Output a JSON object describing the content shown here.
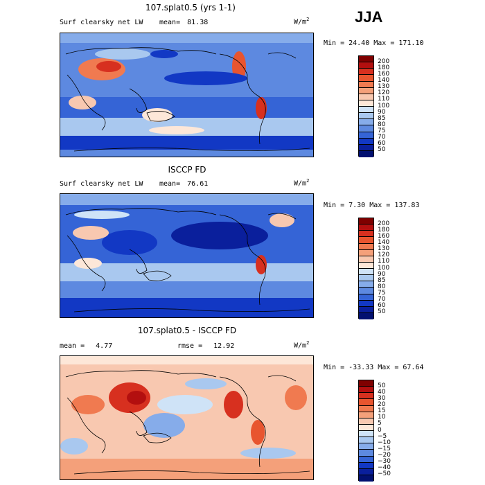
{
  "season": "JJA",
  "panels": [
    {
      "title": "107.splat0.5 (yrs 1-1)",
      "left_label": "Surf clearsky net LW",
      "mean_label": "mean=",
      "mean_value": "81.38",
      "units": "W/m",
      "units_sup": "2",
      "minmax": "Min =  24.40 Max = 171.10",
      "colorbar_labels": [
        "200",
        "180",
        "160",
        "140",
        "130",
        "120",
        "110",
        "100",
        "90",
        "85",
        "80",
        "75",
        "70",
        "60",
        "50"
      ]
    },
    {
      "title": "ISCCP FD",
      "left_label": "Surf clearsky net LW",
      "mean_label": "mean=",
      "mean_value": "76.61",
      "units": "W/m",
      "units_sup": "2",
      "minmax": "Min =   7.30 Max = 137.83",
      "colorbar_labels": [
        "200",
        "180",
        "160",
        "140",
        "130",
        "120",
        "110",
        "100",
        "90",
        "85",
        "80",
        "75",
        "70",
        "60",
        "50"
      ]
    },
    {
      "title": "107.splat0.5 - ISCCP FD",
      "mean_label": "mean =",
      "mean_value": "4.77",
      "rmse_label": "rmse =",
      "rmse_value": "12.92",
      "units": "W/m",
      "units_sup": "2",
      "minmax": "Min = -33.33 Max =  67.64",
      "colorbar_labels": [
        "50",
        "40",
        "30",
        "20",
        "15",
        "10",
        "5",
        "0",
        "−5",
        "−10",
        "−15",
        "−20",
        "−30",
        "−40",
        "−50"
      ]
    }
  ],
  "colors": {
    "scale_abs": [
      "#7f0000",
      "#b30f0f",
      "#d7301f",
      "#e8552f",
      "#f07a50",
      "#f4a07a",
      "#f8c8b0",
      "#fde7d8",
      "#cfe3f7",
      "#a9c8ef",
      "#86acea",
      "#5d89e0",
      "#3564d6",
      "#1238c4",
      "#0a1f9c",
      "#021070"
    ],
    "scale_diff": [
      "#7f0000",
      "#b30f0f",
      "#d7301f",
      "#e8552f",
      "#f07a50",
      "#f4a07a",
      "#f8c8b0",
      "#fde7d8",
      "#cfe3f7",
      "#a9c8ef",
      "#86acea",
      "#5d89e0",
      "#3564d6",
      "#1238c4",
      "#0a1f9c",
      "#021070"
    ]
  }
}
